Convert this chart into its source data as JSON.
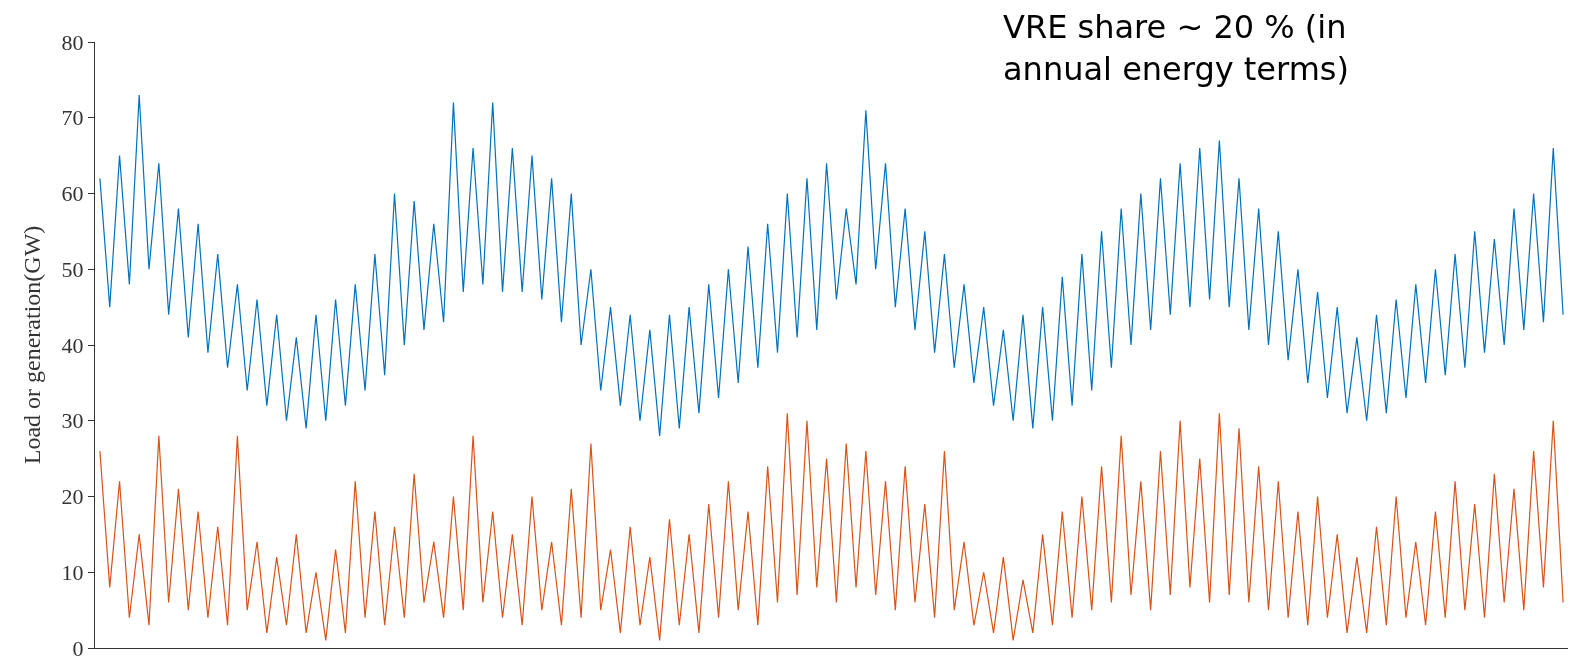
{
  "chart_data": {
    "type": "line",
    "ylabel": "Load or generation(GW)",
    "annotations": [
      "VRE share ~ 20 % (in annual energy terms)"
    ],
    "categories": [
      null,
      null,
      null,
      null,
      null,
      null,
      null,
      null,
      null,
      null,
      null,
      null,
      null,
      null,
      null,
      null,
      null,
      null,
      null,
      null,
      null,
      null,
      null,
      null,
      null,
      null,
      null,
      null,
      null,
      null,
      null,
      null,
      null,
      null,
      null,
      null,
      null,
      null,
      null,
      null,
      null,
      null,
      null,
      null,
      null,
      null,
      null,
      null,
      null,
      null,
      null,
      null,
      null,
      null,
      null,
      null,
      null,
      null,
      null,
      null,
      null,
      null,
      null,
      null,
      null,
      null,
      null,
      null,
      null,
      null,
      null,
      null,
      null,
      null,
      null,
      null,
      null,
      null,
      null,
      null,
      null,
      null,
      null,
      null,
      null,
      null,
      null,
      null,
      null,
      null,
      null,
      null,
      null,
      null,
      null,
      null,
      null,
      null,
      null,
      null,
      null,
      null,
      null,
      null,
      null,
      null,
      null,
      null,
      null,
      null,
      null,
      null,
      null,
      null,
      null,
      null,
      null,
      null,
      null,
      null,
      null,
      null,
      null,
      null,
      null,
      null,
      null,
      null,
      null,
      null,
      null,
      null,
      null,
      null,
      null,
      null,
      null,
      null,
      null,
      null,
      null,
      null,
      null,
      null,
      null,
      null,
      null,
      null,
      null,
      null
    ],
    "series": [
      {
        "color": "#0072bd",
        "values": [
          62,
          45,
          65,
          48,
          73,
          50,
          64,
          44,
          58,
          41,
          56,
          39,
          52,
          37,
          48,
          34,
          46,
          32,
          44,
          30,
          41,
          29,
          44,
          30,
          46,
          32,
          48,
          34,
          52,
          36,
          60,
          40,
          59,
          42,
          56,
          43,
          72,
          47,
          66,
          48,
          72,
          47,
          66,
          47,
          65,
          46,
          62,
          43,
          60,
          40,
          50,
          34,
          45,
          32,
          44,
          30,
          42,
          28,
          44,
          29,
          45,
          31,
          48,
          33,
          50,
          35,
          53,
          37,
          56,
          39,
          60,
          41,
          62,
          42,
          64,
          46,
          58,
          48,
          71,
          50,
          64,
          45,
          58,
          42,
          55,
          39,
          52,
          37,
          48,
          35,
          45,
          32,
          42,
          30,
          44,
          29,
          45,
          30,
          49,
          32,
          52,
          34,
          55,
          37,
          58,
          40,
          60,
          42,
          62,
          44,
          64,
          45,
          66,
          46,
          67,
          45,
          62,
          42,
          58,
          40,
          55,
          38,
          50,
          35,
          47,
          33,
          45,
          31,
          41,
          30,
          44,
          31,
          46,
          33,
          48,
          35,
          50,
          36,
          52,
          37,
          55,
          39,
          54,
          40,
          58,
          42,
          60,
          43,
          66,
          44
        ]
      },
      {
        "color": "#d95319",
        "values": [
          26,
          8,
          22,
          4,
          15,
          3,
          28,
          6,
          21,
          5,
          18,
          4,
          16,
          3,
          28,
          5,
          14,
          2,
          12,
          3,
          15,
          2,
          10,
          1,
          13,
          2,
          22,
          4,
          18,
          3,
          16,
          4,
          23,
          6,
          14,
          4,
          20,
          5,
          28,
          6,
          18,
          4,
          15,
          3,
          20,
          5,
          14,
          3,
          21,
          4,
          27,
          5,
          13,
          2,
          16,
          3,
          12,
          1,
          17,
          3,
          15,
          2,
          19,
          4,
          22,
          5,
          18,
          3,
          24,
          6,
          31,
          7,
          30,
          8,
          25,
          6,
          27,
          8,
          26,
          7,
          22,
          5,
          24,
          6,
          19,
          4,
          26,
          5,
          14,
          3,
          10,
          2,
          12,
          1,
          9,
          2,
          15,
          3,
          18,
          4,
          20,
          5,
          24,
          6,
          28,
          7,
          22,
          5,
          26,
          7,
          30,
          8,
          25,
          6,
          31,
          7,
          29,
          6,
          24,
          5,
          22,
          4,
          18,
          3,
          20,
          4,
          15,
          2,
          12,
          2,
          16,
          3,
          20,
          4,
          14,
          3,
          18,
          4,
          22,
          5,
          19,
          4,
          23,
          6,
          21,
          5,
          26,
          8,
          30,
          6
        ]
      }
    ],
    "ylim": [
      0,
      80
    ],
    "yticks": [
      0,
      10,
      20,
      30,
      40,
      50,
      60,
      70,
      80
    ]
  }
}
